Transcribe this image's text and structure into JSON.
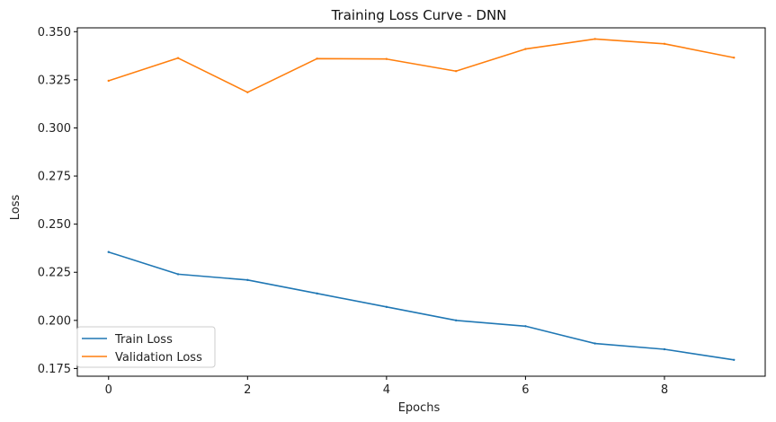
{
  "chart_data": {
    "type": "line",
    "title": "Training Loss Curve - DNN",
    "xlabel": "Epochs",
    "ylabel": "Loss",
    "x": [
      0,
      1,
      2,
      3,
      4,
      5,
      6,
      7,
      8,
      9
    ],
    "xlim": [
      -0.45,
      9.45
    ],
    "ylim": [
      0.171,
      0.352
    ],
    "x_ticks": [
      0,
      2,
      4,
      6,
      8
    ],
    "y_ticks": [
      0.175,
      0.2,
      0.225,
      0.25,
      0.275,
      0.3,
      0.325,
      0.35
    ],
    "x_tick_labels": [
      "0",
      "2",
      "4",
      "6",
      "8"
    ],
    "y_tick_labels": [
      "0.175",
      "0.200",
      "0.225",
      "0.250",
      "0.275",
      "0.300",
      "0.325",
      "0.350"
    ],
    "grid": false,
    "legend_position": "lower-left",
    "series": [
      {
        "name": "Train Loss",
        "color": "#1f77b4",
        "values": [
          0.2355,
          0.224,
          0.221,
          0.214,
          0.207,
          0.2,
          0.197,
          0.188,
          0.185,
          0.1795
        ]
      },
      {
        "name": "Validation Loss",
        "color": "#ff7f0e",
        "values": [
          0.3245,
          0.3363,
          0.3185,
          0.336,
          0.3358,
          0.3295,
          0.341,
          0.3462,
          0.3437,
          0.3365
        ]
      }
    ]
  }
}
